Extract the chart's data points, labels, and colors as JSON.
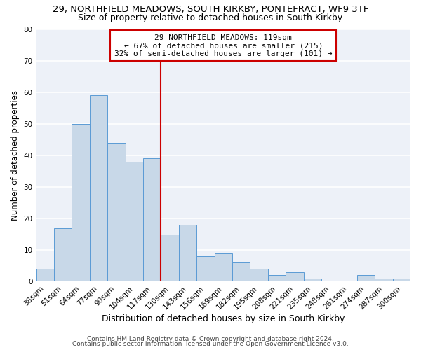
{
  "title": "29, NORTHFIELD MEADOWS, SOUTH KIRKBY, PONTEFRACT, WF9 3TF",
  "subtitle": "Size of property relative to detached houses in South Kirkby",
  "xlabel": "Distribution of detached houses by size in South Kirkby",
  "ylabel": "Number of detached properties",
  "bar_color": "#c8d8e8",
  "bar_edge_color": "#5b9bd5",
  "background_color": "#edf1f8",
  "grid_color": "white",
  "categories": [
    "38sqm",
    "51sqm",
    "64sqm",
    "77sqm",
    "90sqm",
    "104sqm",
    "117sqm",
    "130sqm",
    "143sqm",
    "156sqm",
    "169sqm",
    "182sqm",
    "195sqm",
    "208sqm",
    "221sqm",
    "235sqm",
    "248sqm",
    "261sqm",
    "274sqm",
    "287sqm",
    "300sqm"
  ],
  "values": [
    4,
    17,
    50,
    59,
    44,
    38,
    39,
    15,
    18,
    8,
    9,
    6,
    4,
    2,
    3,
    1,
    0,
    0,
    2,
    1,
    1
  ],
  "ylim": [
    0,
    80
  ],
  "yticks": [
    0,
    10,
    20,
    30,
    40,
    50,
    60,
    70,
    80
  ],
  "vline_x": 6.5,
  "vline_color": "#cc0000",
  "annotation_text": "29 NORTHFIELD MEADOWS: 119sqm\n← 67% of detached houses are smaller (215)\n32% of semi-detached houses are larger (101) →",
  "annotation_box_color": "white",
  "annotation_box_edge": "#cc0000",
  "footer1": "Contains HM Land Registry data © Crown copyright and database right 2024.",
  "footer2": "Contains public sector information licensed under the Open Government Licence v3.0.",
  "title_fontsize": 9.5,
  "subtitle_fontsize": 9,
  "xlabel_fontsize": 9,
  "ylabel_fontsize": 8.5,
  "tick_fontsize": 7.5,
  "annotation_fontsize": 8,
  "footer_fontsize": 6.5
}
